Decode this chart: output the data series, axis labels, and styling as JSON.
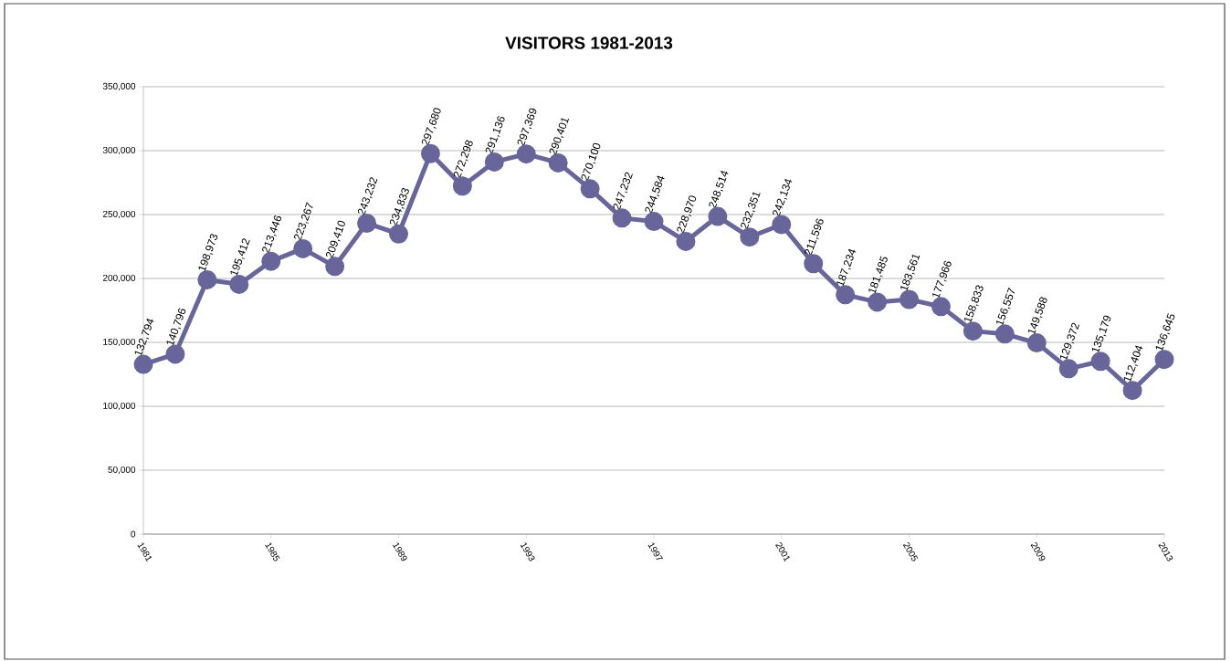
{
  "chart_data": {
    "type": "line",
    "title": "VISITORS 1981-2013",
    "x": [
      1981,
      1982,
      1983,
      1984,
      1985,
      1986,
      1987,
      1988,
      1989,
      1990,
      1991,
      1992,
      1993,
      1994,
      1995,
      1996,
      1997,
      1998,
      1999,
      2000,
      2001,
      2002,
      2003,
      2004,
      2005,
      2006,
      2007,
      2008,
      2009,
      2010,
      2011,
      2012,
      2013
    ],
    "series": [
      {
        "color": "#67659a",
        "values": [
          132794,
          140796,
          198973,
          195412,
          213446,
          223267,
          209410,
          243232,
          234833,
          297680,
          272298,
          291136,
          297369,
          290401,
          270100,
          247232,
          244584,
          228970,
          248514,
          232351,
          242134,
          211596,
          187234,
          181485,
          183561,
          177966,
          158833,
          156557,
          149588,
          129372,
          135179,
          112404,
          136645
        ],
        "value_labels": [
          "132,794",
          "140,796",
          "198,973",
          "195,412",
          "213,446",
          "223,267",
          "209,410",
          "243,232",
          "234,833",
          "297,680",
          "272,298",
          "291,136",
          "297,369",
          "290,401",
          "270,100",
          "247,232",
          "244,584",
          "228,970",
          "248,514",
          "232,351",
          "242,134",
          "211,596",
          "187,234",
          "181,485",
          "183,561",
          "177,966",
          "158,833",
          "156,557",
          "149,588",
          "129,372",
          "135,179",
          "112,404",
          "136,645"
        ]
      }
    ],
    "xlim": [
      1981,
      2013
    ],
    "xticks": [
      1981,
      1985,
      1989,
      1993,
      1997,
      2001,
      2005,
      2009,
      2013
    ],
    "ylim": [
      0,
      350000
    ],
    "yticks": [
      {
        "value": 0,
        "label": "0"
      },
      {
        "value": 50000,
        "label": "50,000"
      },
      {
        "value": 100000,
        "label": "100,000"
      },
      {
        "value": 150000,
        "label": "150,000"
      },
      {
        "value": 200000,
        "label": "200,000"
      },
      {
        "value": 250000,
        "label": "250,000"
      },
      {
        "value": 300000,
        "label": "300,000"
      },
      {
        "value": 350000,
        "label": "350,000"
      }
    ],
    "grid": "y",
    "marker": "circle",
    "line_style": "solid"
  }
}
